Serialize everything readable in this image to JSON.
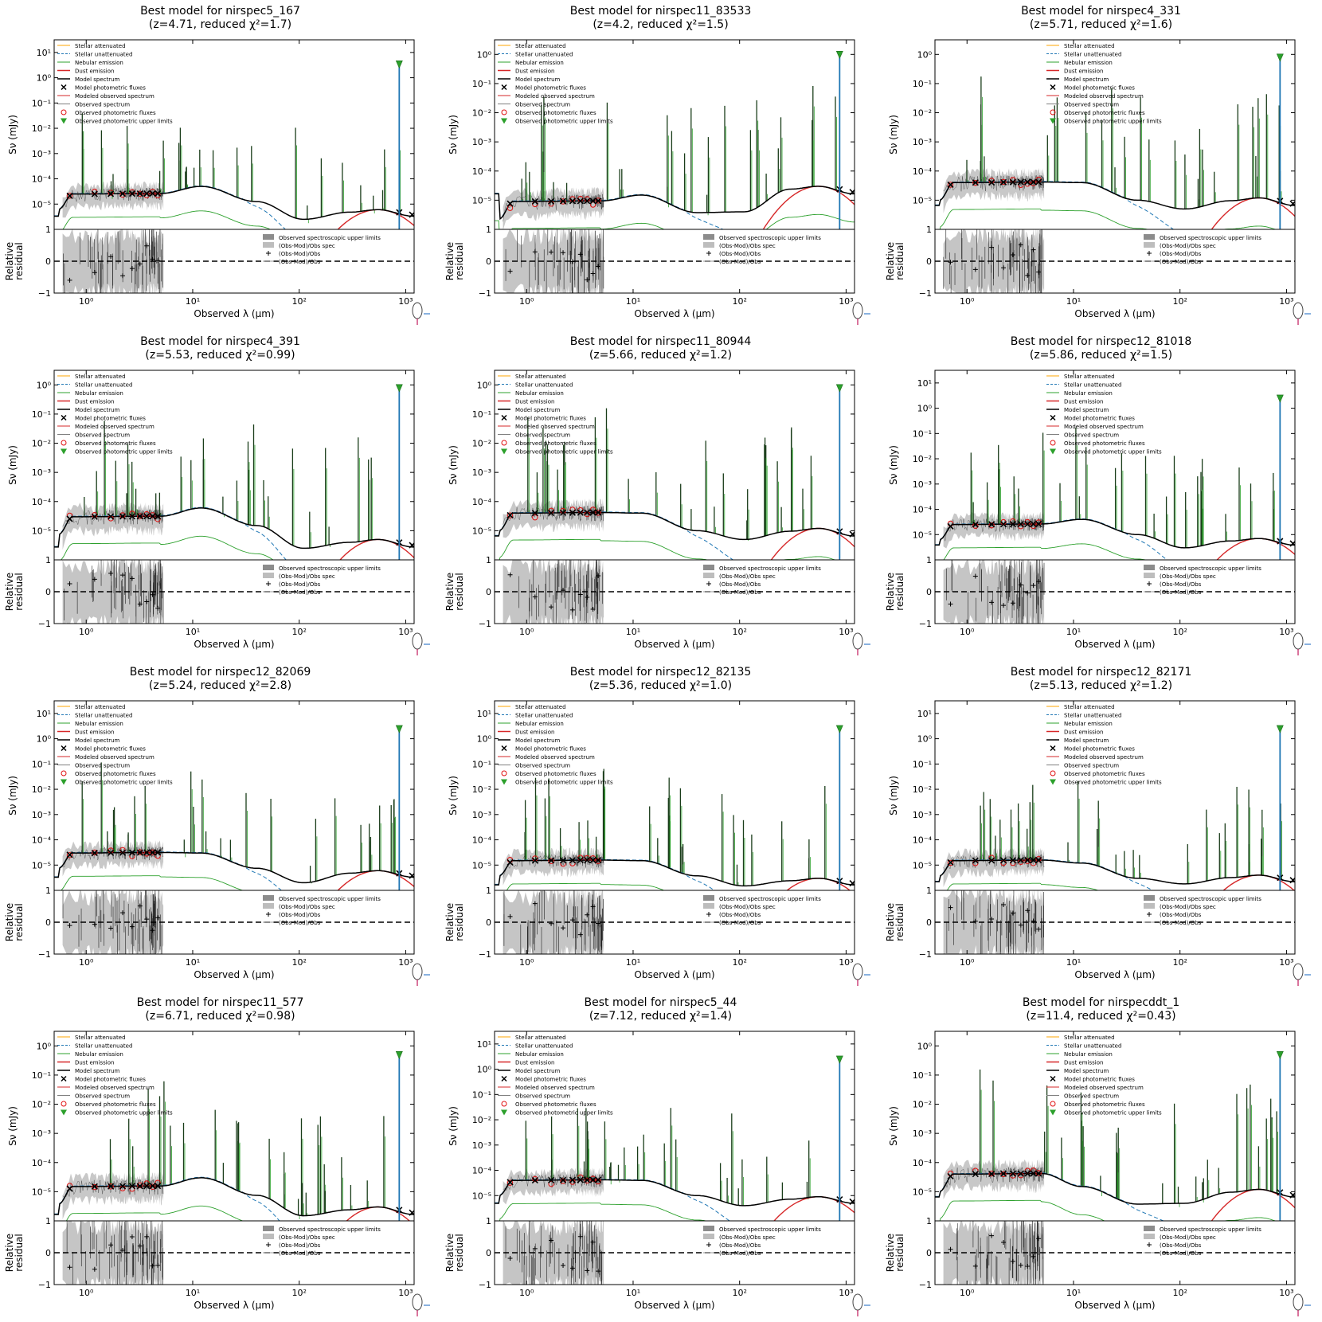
{
  "legend_labels": [
    "Stellar attenuated",
    "Stellar unattenuated",
    "Nebular emission",
    "Dust emission",
    "Model spectrum",
    "Model photometric fluxes",
    "Modeled observed spectrum",
    "Observed spectrum",
    "Observed photometric fluxes",
    "Observed photometric upper limits"
  ],
  "residual_legend_labels": [
    "Observed spectroscopic upper limits",
    "(Obs-Mod)/Obs spec",
    "(Obs-Mod)/Obs",
    "(Obs-Mod)/Obs"
  ],
  "colors": {
    "stellar_attenuated": "#ffa500",
    "stellar_unattenuated": "#1f77b4",
    "nebular": "#2ca02c",
    "dust": "#d62728",
    "model": "#000000",
    "obs_spectrum": "#808080",
    "obs_flux": "#e01010",
    "upper_limit": "#2ca02c",
    "upper_limit_line": "#1f77b4"
  },
  "chart_data": [
    {
      "type": "line",
      "title": "Best model for nirspec5_167",
      "subtitle": "(z=4.71, reduced χ²=1.7)",
      "xlabel": "Observed λ (μm)",
      "ylabel": "Sν (mJy)",
      "residual_ylabel": [
        "Relative",
        "residual"
      ],
      "y_ticks": [
        "10⁻⁵",
        "10⁻⁴",
        "10⁻³",
        "10⁻²",
        "10⁻¹",
        "10⁰",
        "10¹"
      ],
      "x_ticks": [
        "10⁰",
        "10¹",
        "10²",
        "10³"
      ],
      "residual_ticks": [
        "1",
        "0",
        "−1"
      ],
      "xlim": [
        0.5,
        1200
      ],
      "ylim_log10": [
        -6,
        1.5
      ],
      "residual_ylim": [
        -1,
        1
      ],
      "model_flux_mjy": {
        "uv_plateau": 2.5e-05,
        "peak_10um": 5e-05,
        "trough_100um": 2.5e-06,
        "dust_peak_500um": 6e-06
      },
      "upper_limit_um": 870,
      "upper_limit_mjy": 3.5
    },
    {
      "type": "line",
      "title": "Best model for nirspec11_83533",
      "subtitle": "(z=4.2, reduced χ²=1.5)",
      "xlabel": "Observed λ (μm)",
      "ylabel": "Sν (mJy)",
      "residual_ylabel": [
        "Relative",
        "residual"
      ],
      "y_ticks": [
        "10⁻⁵",
        "10⁻⁴",
        "10⁻³",
        "10⁻²",
        "10⁻¹",
        "10⁰"
      ],
      "x_ticks": [
        "10⁰",
        "10¹",
        "10²",
        "10³"
      ],
      "residual_ticks": [
        "1",
        "0",
        "−1"
      ],
      "xlim": [
        0.5,
        1200
      ],
      "ylim_log10": [
        -6,
        0.5
      ],
      "residual_ylim": [
        -1,
        1
      ],
      "model_flux_mjy": {
        "uv_plateau": 9e-06,
        "peak_10um": 1.5e-05,
        "trough_100um": 4e-06,
        "dust_peak_500um": 3e-05
      },
      "upper_limit_um": 870,
      "upper_limit_mjy": 1.0
    },
    {
      "type": "line",
      "title": "Best model for nirspec4_331",
      "subtitle": "(z=5.71, reduced χ²=1.6)",
      "xlabel": "Observed λ (μm)",
      "ylabel": "Sν (mJy)",
      "residual_ylabel": [
        "Relative",
        "residual"
      ],
      "y_ticks": [
        "10⁻⁵",
        "10⁻⁴",
        "10⁻³",
        "10⁻²",
        "10⁻¹",
        "10⁰"
      ],
      "x_ticks": [
        "10⁰",
        "10¹",
        "10²",
        "10³"
      ],
      "residual_ticks": [
        "1",
        "0",
        "−1"
      ],
      "xlim": [
        0.5,
        1200
      ],
      "ylim_log10": [
        -6,
        0.5
      ],
      "residual_ylim": [
        -1,
        1
      ],
      "model_flux_mjy": {
        "uv_plateau": 4e-05,
        "peak_10um": 4e-05,
        "trough_100um": 5e-06,
        "dust_peak_500um": 1.2e-05
      },
      "upper_limit_um": 870,
      "upper_limit_mjy": 0.8
    },
    {
      "type": "line",
      "title": "Best model for nirspec4_391",
      "subtitle": "(z=5.53, reduced χ²=0.99)",
      "xlabel": "Observed λ (μm)",
      "ylabel": "Sν (mJy)",
      "residual_ylabel": [
        "Relative",
        "residual"
      ],
      "y_ticks": [
        "10⁻⁵",
        "10⁻⁴",
        "10⁻³",
        "10⁻²",
        "10⁻¹",
        "10⁰"
      ],
      "x_ticks": [
        "10⁰",
        "10¹",
        "10²",
        "10³"
      ],
      "residual_ticks": [
        "1",
        "0",
        "−1"
      ],
      "xlim": [
        0.5,
        1200
      ],
      "ylim_log10": [
        -6,
        0.5
      ],
      "residual_ylim": [
        -1,
        1
      ],
      "model_flux_mjy": {
        "uv_plateau": 3e-05,
        "peak_10um": 6e-05,
        "trough_100um": 2.5e-06,
        "dust_peak_500um": 5e-06
      },
      "upper_limit_um": 870,
      "upper_limit_mjy": 0.8
    },
    {
      "type": "line",
      "title": "Best model for nirspec11_80944",
      "subtitle": "(z=5.66, reduced χ²=1.2)",
      "xlabel": "Observed λ (μm)",
      "ylabel": "Sν (mJy)",
      "residual_ylabel": [
        "Relative",
        "residual"
      ],
      "y_ticks": [
        "10⁻⁵",
        "10⁻⁴",
        "10⁻³",
        "10⁻²",
        "10⁻¹",
        "10⁰"
      ],
      "x_ticks": [
        "10⁰",
        "10¹",
        "10²",
        "10³"
      ],
      "residual_ticks": [
        "1",
        "0",
        "−1"
      ],
      "xlim": [
        0.5,
        1200
      ],
      "ylim_log10": [
        -6,
        0.5
      ],
      "residual_ylim": [
        -1,
        1
      ],
      "model_flux_mjy": {
        "uv_plateau": 4e-05,
        "peak_10um": 4e-05,
        "trough_100um": 5e-06,
        "dust_peak_500um": 1.2e-05
      },
      "upper_limit_um": 870,
      "upper_limit_mjy": 0.8
    },
    {
      "type": "line",
      "title": "Best model for nirspec12_81018",
      "subtitle": "(z=5.86, reduced χ²=1.5)",
      "xlabel": "Observed λ (μm)",
      "ylabel": "Sν (mJy)",
      "residual_ylabel": [
        "Relative",
        "residual"
      ],
      "y_ticks": [
        "10⁻⁵",
        "10⁻⁴",
        "10⁻³",
        "10⁻²",
        "10⁻¹",
        "10⁰",
        "10¹"
      ],
      "x_ticks": [
        "10⁰",
        "10¹",
        "10²",
        "10³"
      ],
      "residual_ticks": [
        "1",
        "0",
        "−1"
      ],
      "xlim": [
        0.5,
        1200
      ],
      "ylim_log10": [
        -6,
        1.5
      ],
      "residual_ylim": [
        -1,
        1
      ],
      "model_flux_mjy": {
        "uv_plateau": 2.5e-05,
        "peak_10um": 4e-05,
        "trough_100um": 3e-06,
        "dust_peak_500um": 7e-06
      },
      "upper_limit_um": 870,
      "upper_limit_mjy": 2.5
    },
    {
      "type": "line",
      "title": "Best model for nirspec12_82069",
      "subtitle": "(z=5.24, reduced χ²=2.8)",
      "xlabel": "Observed λ (μm)",
      "ylabel": "Sν (mJy)",
      "residual_ylabel": [
        "Relative",
        "residual"
      ],
      "y_ticks": [
        "10⁻⁵",
        "10⁻⁴",
        "10⁻³",
        "10⁻²",
        "10⁻¹",
        "10⁰",
        "10¹"
      ],
      "x_ticks": [
        "10⁰",
        "10¹",
        "10²",
        "10³"
      ],
      "residual_ticks": [
        "1",
        "0",
        "−1"
      ],
      "xlim": [
        0.5,
        1200
      ],
      "ylim_log10": [
        -6,
        1.5
      ],
      "residual_ylim": [
        -1,
        1
      ],
      "model_flux_mjy": {
        "uv_plateau": 3e-05,
        "peak_10um": 3e-05,
        "trough_100um": 2e-06,
        "dust_peak_500um": 6e-06
      },
      "upper_limit_um": 870,
      "upper_limit_mjy": 2.5
    },
    {
      "type": "line",
      "title": "Best model for nirspec12_82135",
      "subtitle": "(z=5.36, reduced χ²=1.0)",
      "xlabel": "Observed λ (μm)",
      "ylabel": "Sν (mJy)",
      "residual_ylabel": [
        "Relative",
        "residual"
      ],
      "y_ticks": [
        "10⁻⁵",
        "10⁻⁴",
        "10⁻³",
        "10⁻²",
        "10⁻¹",
        "10⁰",
        "10¹"
      ],
      "x_ticks": [
        "10⁰",
        "10¹",
        "10²",
        "10³"
      ],
      "residual_ticks": [
        "1",
        "0",
        "−1"
      ],
      "xlim": [
        0.5,
        1200
      ],
      "ylim_log10": [
        -6,
        1.5
      ],
      "residual_ylim": [
        -1,
        1
      ],
      "model_flux_mjy": {
        "uv_plateau": 1.5e-05,
        "peak_10um": 1.5e-05,
        "trough_100um": 1.5e-06,
        "dust_peak_500um": 3e-06
      },
      "upper_limit_um": 870,
      "upper_limit_mjy": 2.5
    },
    {
      "type": "line",
      "title": "Best model for nirspec12_82171",
      "subtitle": "(z=5.13, reduced χ²=1.2)",
      "xlabel": "Observed λ (μm)",
      "ylabel": "Sν (mJy)",
      "residual_ylabel": [
        "Relative",
        "residual"
      ],
      "y_ticks": [
        "10⁻⁵",
        "10⁻⁴",
        "10⁻³",
        "10⁻²",
        "10⁻¹",
        "10⁰",
        "10¹"
      ],
      "x_ticks": [
        "10⁰",
        "10¹",
        "10²",
        "10³"
      ],
      "residual_ticks": [
        "1",
        "0",
        "−1"
      ],
      "xlim": [
        0.5,
        1200
      ],
      "ylim_log10": [
        -6,
        1.5
      ],
      "residual_ylim": [
        -1,
        1
      ],
      "model_flux_mjy": {
        "uv_plateau": 1.5e-05,
        "peak_10um": 1.2e-05,
        "trough_100um": 1.8e-06,
        "dust_peak_500um": 4e-06
      },
      "upper_limit_um": 870,
      "upper_limit_mjy": 2.5
    },
    {
      "type": "line",
      "title": "Best model for nirspec11_577",
      "subtitle": "(z=6.71, reduced χ²=0.98)",
      "xlabel": "Observed λ (μm)",
      "ylabel": "Sν (mJy)",
      "residual_ylabel": [
        "Relative",
        "residual"
      ],
      "y_ticks": [
        "10⁻⁵",
        "10⁻⁴",
        "10⁻³",
        "10⁻²",
        "10⁻¹",
        "10⁰"
      ],
      "x_ticks": [
        "10⁰",
        "10¹",
        "10²",
        "10³"
      ],
      "residual_ticks": [
        "1",
        "0",
        "−1"
      ],
      "xlim": [
        0.5,
        1200
      ],
      "ylim_log10": [
        -6,
        0.5
      ],
      "residual_ylim": [
        -1,
        1
      ],
      "model_flux_mjy": {
        "uv_plateau": 1.5e-05,
        "peak_10um": 3e-05,
        "trough_100um": 1.5e-06,
        "dust_peak_500um": 3e-06
      },
      "upper_limit_um": 870,
      "upper_limit_mjy": 0.5
    },
    {
      "type": "line",
      "title": "Best model for nirspec5_44",
      "subtitle": "(z=7.12, reduced χ²=1.4)",
      "xlabel": "Observed λ (μm)",
      "ylabel": "Sν (mJy)",
      "residual_ylabel": [
        "Relative",
        "residual"
      ],
      "y_ticks": [
        "10⁻⁵",
        "10⁻⁴",
        "10⁻³",
        "10⁻²",
        "10⁻¹",
        "10⁰",
        "10¹"
      ],
      "x_ticks": [
        "10⁰",
        "10¹",
        "10²",
        "10³"
      ],
      "residual_ticks": [
        "1",
        "0",
        "−1"
      ],
      "xlim": [
        0.5,
        1200
      ],
      "ylim_log10": [
        -6,
        1.5
      ],
      "residual_ylim": [
        -1,
        1
      ],
      "model_flux_mjy": {
        "uv_plateau": 4e-05,
        "peak_10um": 4e-05,
        "trough_100um": 4e-06,
        "dust_peak_500um": 9e-06
      },
      "upper_limit_um": 870,
      "upper_limit_mjy": 2.5
    },
    {
      "type": "line",
      "title": "Best model for nirspecddt_1",
      "subtitle": "(z=11.4, reduced χ²=0.43)",
      "xlabel": "Observed λ (μm)",
      "ylabel": "Sν (mJy)",
      "residual_ylabel": [
        "Relative",
        "residual"
      ],
      "y_ticks": [
        "10⁻⁵",
        "10⁻⁴",
        "10⁻³",
        "10⁻²",
        "10⁻¹",
        "10⁰"
      ],
      "x_ticks": [
        "10⁰",
        "10¹",
        "10²",
        "10³"
      ],
      "residual_ticks": [
        "1",
        "0",
        "−1"
      ],
      "xlim": [
        0.5,
        1200
      ],
      "ylim_log10": [
        -6,
        0.5
      ],
      "residual_ylim": [
        -1,
        1
      ],
      "model_flux_mjy": {
        "uv_plateau": 4e-05,
        "peak_10um": 1.5e-05,
        "trough_100um": 4e-06,
        "dust_peak_500um": 1.2e-05
      },
      "upper_limit_um": 870,
      "upper_limit_mjy": 0.5
    }
  ]
}
